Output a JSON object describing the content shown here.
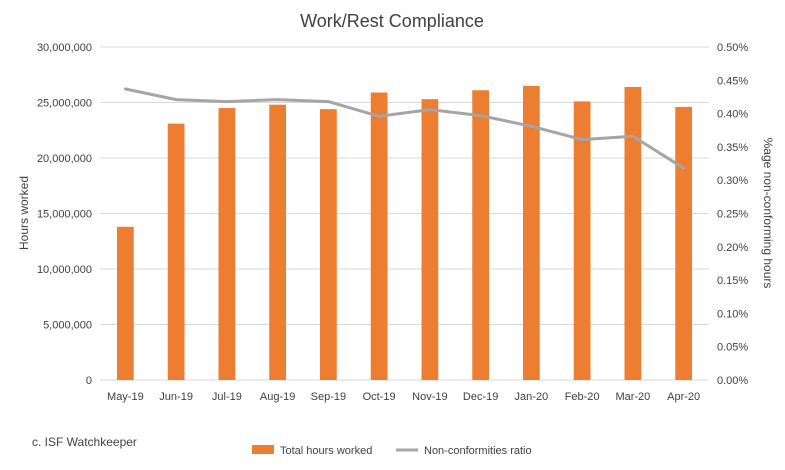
{
  "chart_data": {
    "type": "bar",
    "title": "Work/Rest Compliance",
    "ylabel": "Hours worked",
    "y2label": "%age non-conforming hours",
    "categories": [
      "May-19",
      "Jun-19",
      "Jul-19",
      "Aug-19",
      "Sep-19",
      "Oct-19",
      "Nov-19",
      "Dec-19",
      "Jan-20",
      "Feb-20",
      "Mar-20",
      "Apr-20"
    ],
    "series": [
      {
        "name": "Total hours worked",
        "type": "bar",
        "axis": "left",
        "color": "#ED7D31",
        "values": [
          13800000,
          23100000,
          24500000,
          24800000,
          24400000,
          25900000,
          25300000,
          26100000,
          26500000,
          25100000,
          26400000,
          24600000
        ]
      },
      {
        "name": "Non-conformities ratio",
        "type": "line",
        "axis": "right",
        "color": "#A5A5A5",
        "values": [
          0.437,
          0.421,
          0.418,
          0.421,
          0.418,
          0.396,
          0.406,
          0.397,
          0.381,
          0.361,
          0.366,
          0.318
        ]
      }
    ],
    "ylim": [
      0,
      30000000
    ],
    "y2lim": [
      0,
      0.5
    ],
    "yticks": [
      "0",
      "5,000,000",
      "10,000,000",
      "15,000,000",
      "20,000,000",
      "25,000,000",
      "30,000,000"
    ],
    "y2ticks": [
      "0.00%",
      "0.05%",
      "0.10%",
      "0.15%",
      "0.20%",
      "0.25%",
      "0.30%",
      "0.35%",
      "0.40%",
      "0.45%",
      "0.50%"
    ],
    "grid": true,
    "legend": "bottom",
    "source": "c. ISF Watchkeeper",
    "colors": {
      "gridline": "#D9D9D9",
      "text": "#404040"
    }
  }
}
